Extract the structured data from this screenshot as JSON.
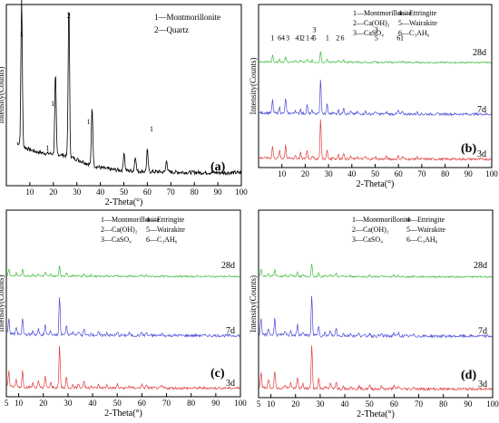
{
  "figure": {
    "x_axis_label": "2-Theta(°)",
    "y_axis_label": "Intensity(Counts)"
  },
  "chart_data": [
    {
      "type": "line",
      "panel": "(a)",
      "xlabel": "2-Theta(°)",
      "ylabel": "Intensity(Counts)",
      "xlim": [
        0,
        100
      ],
      "xticks": [
        10,
        20,
        30,
        40,
        50,
        60,
        70,
        80,
        90,
        100
      ],
      "legend": [
        "1—Montmorillonite",
        "2—Quartz"
      ],
      "series": [
        {
          "color": "#000000",
          "peaks": [
            [
              6.5,
              0.95
            ],
            [
              20.9,
              0.52
            ],
            [
              26.6,
              1.0
            ],
            [
              36.5,
              0.38
            ],
            [
              50.1,
              0.12
            ],
            [
              54.9,
              0.1
            ],
            [
              60.0,
              0.14
            ],
            [
              68.2,
              0.08
            ]
          ]
        }
      ],
      "annotations": [
        {
          "x": 6.5,
          "text": "1"
        },
        {
          "x": 17.5,
          "text": "1"
        },
        {
          "x": 19.8,
          "text": "1"
        },
        {
          "x": 26.6,
          "text": "2"
        },
        {
          "x": 35.0,
          "text": "1"
        },
        {
          "x": 61.8,
          "text": "1"
        }
      ]
    },
    {
      "type": "line",
      "panel": "(b)",
      "xlabel": "2-Theta(°)",
      "ylabel": "Intensity(Counts)",
      "xlim": [
        0,
        100
      ],
      "xticks": [
        10,
        20,
        30,
        40,
        50,
        60,
        70,
        80,
        90,
        100
      ],
      "legend": [
        "1—Montmorillonite",
        "2—Ca(OH)₂",
        "3—CaSO₄",
        "4—Ettringite",
        "5—Wairakite",
        "6—C₃AH₆"
      ],
      "series": [
        {
          "name": "28d",
          "color": "#3dbb3d"
        },
        {
          "name": "7d",
          "color": "#4a4ad8"
        },
        {
          "name": "3d",
          "color": "#e03c3c"
        }
      ],
      "annotations": [
        {
          "x": 6,
          "text": "1"
        },
        {
          "x": 9,
          "text": "6"
        },
        {
          "x": 10.5,
          "text": "4"
        },
        {
          "x": 12.5,
          "text": "3"
        },
        {
          "x": 16.5,
          "text": "4"
        },
        {
          "x": 18,
          "text": "1"
        },
        {
          "x": 19,
          "text": "2"
        },
        {
          "x": 21,
          "text": "1"
        },
        {
          "x": 23,
          "text": "4"
        },
        {
          "x": 24,
          "text": "5"
        },
        {
          "x": 24,
          "text": "3"
        },
        {
          "x": 29.5,
          "text": "1"
        },
        {
          "x": 34,
          "text": "2"
        },
        {
          "x": 36,
          "text": "6"
        },
        {
          "x": 50.5,
          "text": "5"
        },
        {
          "x": 50.5,
          "text": "3"
        },
        {
          "x": 60,
          "text": "6"
        },
        {
          "x": 61.5,
          "text": "1"
        }
      ]
    },
    {
      "type": "line",
      "panel": "(c)",
      "xlabel": "2-Theta(°)",
      "ylabel": "Intensity(Counts)",
      "xlim": [
        5,
        100
      ],
      "xticks": [
        5,
        10,
        20,
        30,
        40,
        50,
        60,
        70,
        80,
        90,
        100
      ],
      "legend": [
        "1—Montmorillonite",
        "2—Ca(OH)₂",
        "3—CaSO₄",
        "4—Ettringite",
        "5—Wairakite",
        "6—C₃AH₆"
      ],
      "series": [
        {
          "name": "28d",
          "color": "#3dbb3d"
        },
        {
          "name": "7d",
          "color": "#4a4ad8"
        },
        {
          "name": "3d",
          "color": "#e03c3c"
        }
      ]
    },
    {
      "type": "line",
      "panel": "(d)",
      "xlabel": "2-Theta(°)",
      "ylabel": "Intensity(Counts)",
      "xlim": [
        5,
        100
      ],
      "xticks": [
        5,
        10,
        20,
        30,
        40,
        50,
        60,
        70,
        80,
        90,
        100
      ],
      "legend": [
        "1—Montmorillonite",
        "2—Ca(OH)₂",
        "3—CaSO₄",
        "4—Ettringite",
        "5—Wairakite",
        "6—C₃AH₆"
      ],
      "series": [
        {
          "name": "28d",
          "color": "#3dbb3d"
        },
        {
          "name": "7d",
          "color": "#4a4ad8"
        },
        {
          "name": "3d",
          "color": "#e03c3c"
        }
      ]
    }
  ]
}
